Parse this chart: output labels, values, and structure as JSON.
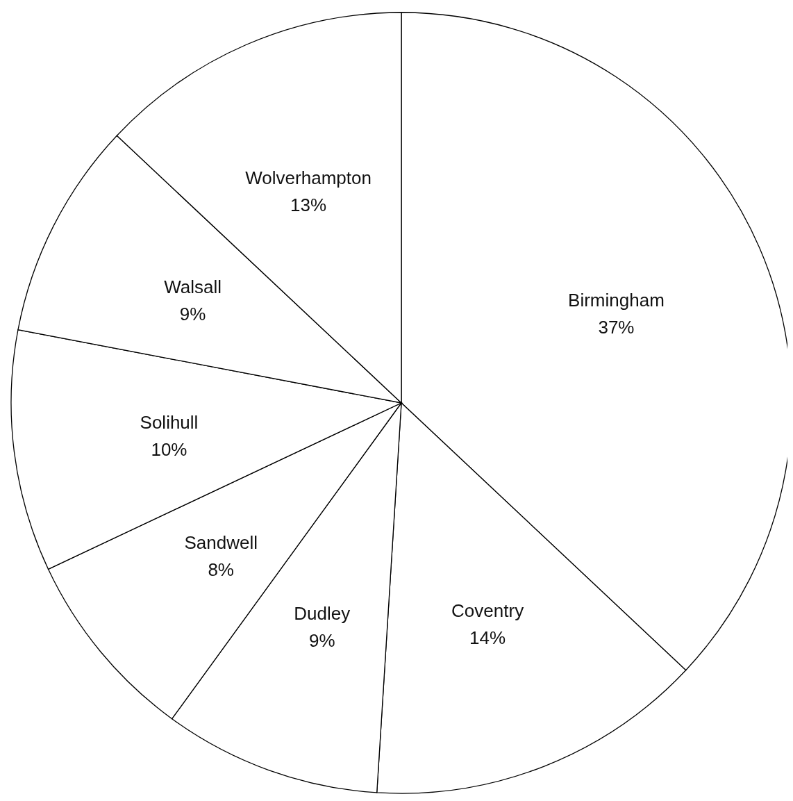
{
  "chart_data": {
    "type": "pie",
    "categories": [
      "Birmingham",
      "Coventry",
      "Dudley",
      "Sandwell",
      "Solihull",
      "Walsall",
      "Wolverhampton"
    ],
    "values": [
      37,
      14,
      9,
      8,
      10,
      9,
      13
    ],
    "colors": [
      "#ffffff",
      "#ffffff",
      "#ffffff",
      "#ffffff",
      "#ffffff",
      "#ffffff",
      "#ffffff"
    ],
    "value_labels": [
      "37%",
      "14%",
      "9%",
      "8%",
      "10%",
      "9%",
      "13%"
    ]
  }
}
